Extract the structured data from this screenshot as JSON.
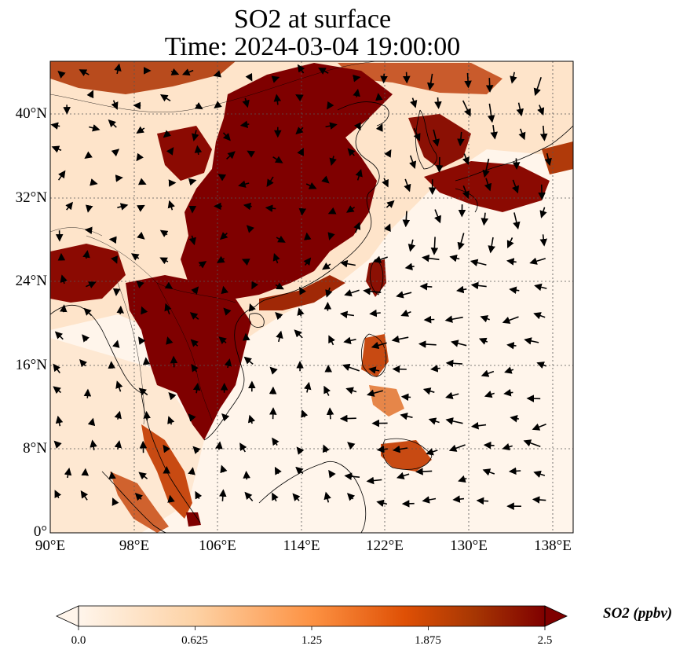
{
  "title": {
    "line1": "SO2 at surface",
    "line2": "Time: 2024-03-04 19:00:00"
  },
  "map": {
    "lon_range": [
      90,
      140
    ],
    "lat_range": [
      0,
      45
    ],
    "lon_ticks": [
      "90°E",
      "98°E",
      "106°E",
      "114°E",
      "122°E",
      "130°E",
      "138°E"
    ],
    "lat_ticks": [
      "0°",
      "8°N",
      "16°N",
      "24°N",
      "32°N",
      "40°N"
    ],
    "gridlines": true,
    "wind_vectors": true
  },
  "colorbar": {
    "label": "SO2 (ppbv)",
    "ticks": [
      "0.0",
      "0.625",
      "1.25",
      "1.875",
      "2.5"
    ],
    "min": 0,
    "max": 2.5,
    "extend": "both",
    "colors": [
      "#fff5eb",
      "#fdd2a5",
      "#fd9243",
      "#df5005",
      "#a63603",
      "#7f0000"
    ]
  }
}
